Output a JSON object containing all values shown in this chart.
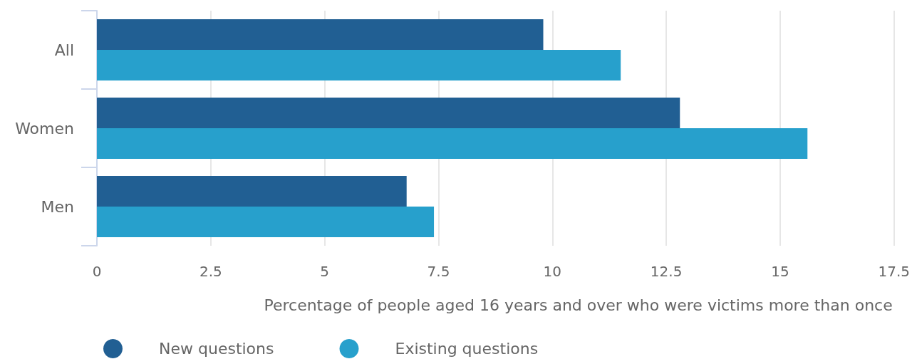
{
  "chart_data": {
    "type": "bar",
    "orientation": "horizontal",
    "categories": [
      "All",
      "Women",
      "Men"
    ],
    "series": [
      {
        "name": "New questions",
        "color": "#215f93",
        "values": [
          9.8,
          12.8,
          6.8
        ]
      },
      {
        "name": "Existing questions",
        "color": "#27a0cc",
        "values": [
          11.5,
          15.6,
          7.4
        ]
      }
    ],
    "xlabel": "Percentage of people aged 16 years and over who were victims more than once",
    "xlim": [
      0,
      17.5
    ],
    "xticks": [
      0,
      2.5,
      5,
      7.5,
      10,
      12.5,
      15,
      17.5
    ],
    "grid": "x",
    "legend": "bottom"
  }
}
